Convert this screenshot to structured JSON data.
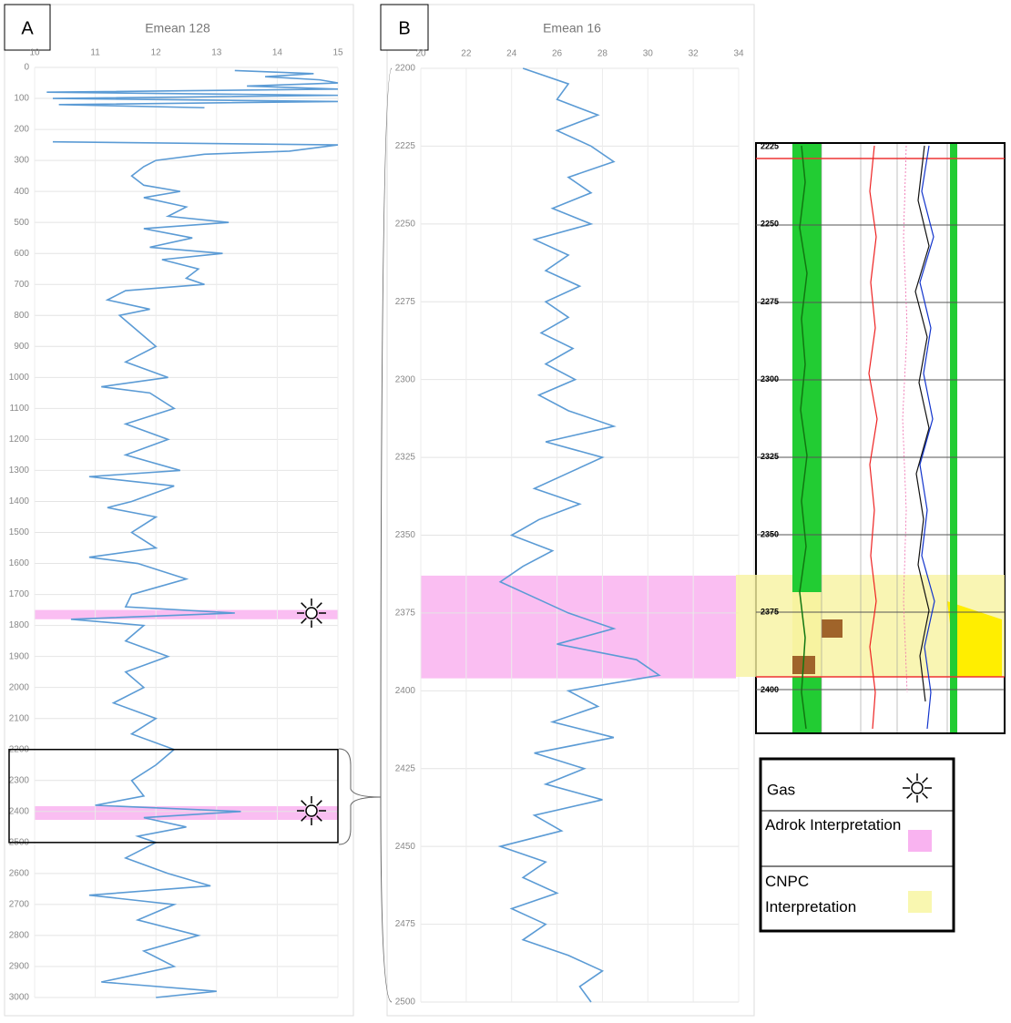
{
  "chart_data": [
    {
      "type": "line",
      "panel": "A",
      "title": "Emean 128",
      "color": "#5b9bd5",
      "grid": true,
      "xlim": [
        10,
        15
      ],
      "xticks": [
        10,
        11,
        12,
        13,
        14,
        15
      ],
      "ylim": [
        0,
        3000
      ],
      "yticks": [
        0,
        100,
        200,
        300,
        400,
        500,
        600,
        700,
        800,
        900,
        1000,
        1100,
        1200,
        1300,
        1400,
        1500,
        1600,
        1700,
        1800,
        1900,
        2000,
        2100,
        2200,
        2300,
        2400,
        2500,
        2600,
        2700,
        2800,
        2900,
        3000
      ],
      "depth": [
        10,
        20,
        30,
        40,
        50,
        60,
        70,
        80,
        90,
        100,
        110,
        120,
        130,
        180,
        240,
        250,
        270,
        280,
        300,
        320,
        350,
        380,
        400,
        420,
        450,
        480,
        500,
        520,
        550,
        580,
        600,
        620,
        650,
        680,
        700,
        720,
        750,
        780,
        800,
        850,
        900,
        950,
        1000,
        1030,
        1050,
        1100,
        1150,
        1200,
        1250,
        1300,
        1320,
        1350,
        1400,
        1420,
        1450,
        1500,
        1550,
        1580,
        1600,
        1650,
        1700,
        1740,
        1760,
        1780,
        1800,
        1850,
        1900,
        1950,
        2000,
        2050,
        2100,
        2150,
        2200,
        2250,
        2300,
        2350,
        2380,
        2400,
        2420,
        2450,
        2480,
        2500,
        2550,
        2600,
        2640,
        2670,
        2700,
        2750,
        2800,
        2850,
        2900,
        2950,
        2980,
        3000
      ],
      "values": [
        13.3,
        14.6,
        13.8,
        14.7,
        15,
        13.5,
        15,
        10.2,
        15,
        10.3,
        15,
        10.4,
        12.8,
        null,
        10.3,
        15,
        14.2,
        12.8,
        12.0,
        11.8,
        11.6,
        11.8,
        12.4,
        11.8,
        12.5,
        12.2,
        13.2,
        11.8,
        12.6,
        11.9,
        13.1,
        12.1,
        12.7,
        12.5,
        12.8,
        11.5,
        11.2,
        11.9,
        11.4,
        11.7,
        12.0,
        11.5,
        12.2,
        11.1,
        11.9,
        12.3,
        11.5,
        12.2,
        11.5,
        12.4,
        10.9,
        12.3,
        11.6,
        11.2,
        12.0,
        11.6,
        12.0,
        10.9,
        11.7,
        12.5,
        11.6,
        11.5,
        13.3,
        10.6,
        11.8,
        11.5,
        12.2,
        11.5,
        11.8,
        11.3,
        12.0,
        11.6,
        12.3,
        12.0,
        11.6,
        11.8,
        11.0,
        13.4,
        11.8,
        12.5,
        11.7,
        12.0,
        11.5,
        12.2,
        12.9,
        10.9,
        12.3,
        11.7,
        12.7,
        11.8,
        12.3,
        11.1,
        13.0,
        12.0
      ],
      "highlights": [
        [
          1750,
          1780
        ],
        [
          2383,
          2427
        ]
      ],
      "zoom_box": [
        2200,
        2500
      ]
    },
    {
      "type": "line",
      "panel": "B",
      "title": "Emean 16",
      "color": "#5b9bd5",
      "grid": true,
      "xlim": [
        20,
        34
      ],
      "xticks": [
        20,
        22,
        24,
        26,
        28,
        30,
        32,
        34
      ],
      "ylim": [
        2200,
        2500
      ],
      "yticks": [
        2200,
        2225,
        2250,
        2275,
        2300,
        2325,
        2350,
        2375,
        2400,
        2425,
        2450,
        2475,
        2500
      ],
      "depth": [
        2200,
        2205,
        2210,
        2215,
        2220,
        2225,
        2230,
        2235,
        2240,
        2245,
        2250,
        2255,
        2260,
        2265,
        2270,
        2275,
        2280,
        2285,
        2290,
        2295,
        2300,
        2305,
        2310,
        2315,
        2320,
        2325,
        2330,
        2335,
        2340,
        2345,
        2350,
        2355,
        2360,
        2365,
        2370,
        2375,
        2380,
        2385,
        2390,
        2395,
        2400,
        2405,
        2410,
        2415,
        2420,
        2425,
        2430,
        2435,
        2440,
        2445,
        2450,
        2455,
        2460,
        2465,
        2470,
        2475,
        2480,
        2485,
        2490,
        2495,
        2500
      ],
      "values": [
        24.5,
        26.5,
        26,
        27.8,
        26,
        27.5,
        28.5,
        26.5,
        27.5,
        25.8,
        27.5,
        25,
        26.5,
        25.5,
        27,
        25.5,
        26.5,
        25.3,
        26.7,
        25.5,
        26.8,
        25.2,
        26.5,
        28.5,
        25.5,
        28,
        26.5,
        25,
        27,
        25.2,
        24,
        25.8,
        24.5,
        23.5,
        25,
        26.5,
        28.5,
        26,
        29.5,
        30.5,
        26.5,
        27.8,
        25.8,
        28.5,
        25,
        27.2,
        25.5,
        28,
        25,
        26.2,
        23.5,
        25.5,
        24.5,
        26,
        24,
        25.5,
        24.5,
        26.5,
        28,
        27,
        27.5
      ],
      "highlights": [
        [
          2363,
          2396
        ]
      ]
    }
  ],
  "well_log": {
    "depth_labels": [
      "2225",
      "2250",
      "2275",
      "2300",
      "2325",
      "2350",
      "2375",
      "2400"
    ]
  },
  "legend": {
    "gas": "Gas",
    "adrok": "Adrok Interpretation",
    "cnpc": "CNPC Interpretation"
  }
}
